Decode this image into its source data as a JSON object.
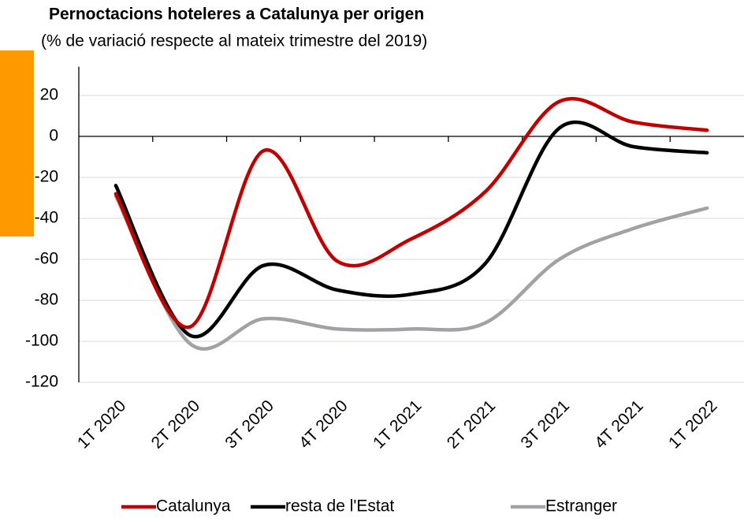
{
  "chart_data": {
    "type": "line",
    "title": "Pernoctacions hoteleres a Catalunya per origen",
    "subtitle": "(% de variació respecte al mateix trimestre del 2019)",
    "categories": [
      "1T 2020",
      "2T 2020",
      "3T 2020",
      "4T 2020",
      "1T 2021",
      "2T 2021",
      "3T 2021",
      "4T 2021",
      "1T 2022"
    ],
    "series": [
      {
        "name": "Catalunya",
        "color": "#c00000",
        "values": [
          -28,
          -93,
          -7,
          -61,
          -50,
          -27,
          17,
          7,
          3
        ]
      },
      {
        "name": "resta de l'Estat",
        "color": "#000000",
        "values": [
          -24,
          -97,
          -63,
          -75,
          -77,
          -62,
          4,
          -5,
          -8
        ]
      },
      {
        "name": "Estranger",
        "color": "#a0a2a5",
        "values": [
          -29,
          -101,
          -89,
          -94,
          -94,
          -91,
          -60,
          -45,
          -35
        ]
      }
    ],
    "ylim": [
      -120,
      34
    ],
    "yticks": [
      -120,
      -100,
      -80,
      -60,
      -40,
      -20,
      0,
      20
    ],
    "grid": true,
    "legend": "bottom"
  }
}
